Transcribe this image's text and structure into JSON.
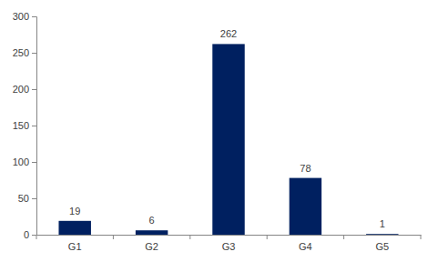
{
  "chart_data": {
    "type": "bar",
    "categories": [
      "G1",
      "G2",
      "G3",
      "G4",
      "G5"
    ],
    "values": [
      19,
      6,
      262,
      78,
      1
    ],
    "color": "#002060",
    "ylim": [
      0,
      300
    ],
    "yticks": [
      0,
      50,
      100,
      150,
      200,
      250,
      300
    ],
    "grid": false,
    "data_labels": true
  }
}
